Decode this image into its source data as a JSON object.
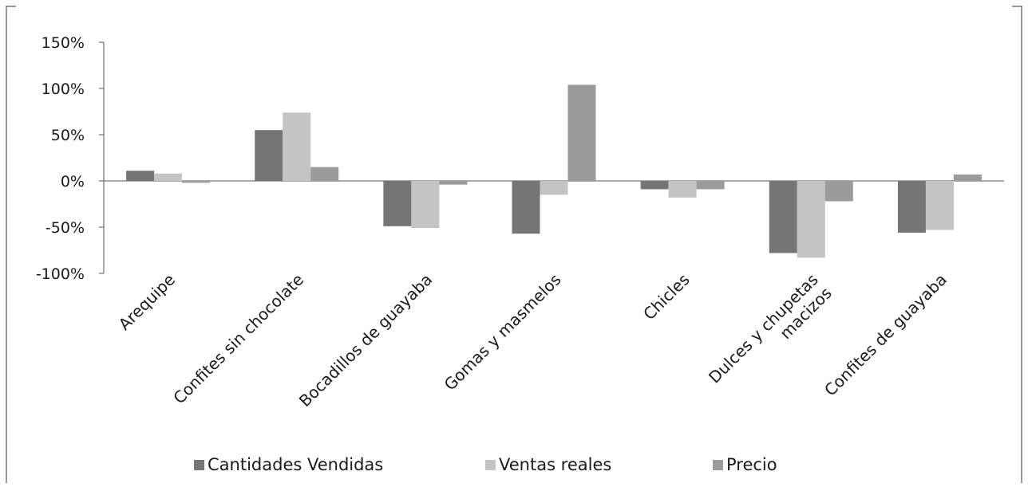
{
  "chart_data": {
    "type": "bar",
    "title": "",
    "xlabel": "",
    "ylabel": "",
    "ylim": [
      -100,
      150
    ],
    "yticks": [
      150,
      100,
      50,
      0,
      -50,
      -100
    ],
    "ytick_labels": [
      "150%",
      "100%",
      "50%",
      "0%",
      "-50%",
      "-100%"
    ],
    "grid": false,
    "legend_position": "bottom",
    "categories": [
      "Arequipe",
      "Confites sin chocolate",
      "Bocadillos de guayaba",
      "Gomas y masmelos",
      "Chicles",
      "Dulces y chupetas macizos",
      "Confites de guayaba"
    ],
    "series": [
      {
        "name": "Cantidades Vendidas",
        "color": "#757575",
        "values": [
          11,
          55,
          -49,
          -57,
          -9,
          -78,
          -56
        ]
      },
      {
        "name": "Ventas reales",
        "color": "#c4c4c4",
        "values": [
          8,
          74,
          -51,
          -15,
          -18,
          -83,
          -53
        ]
      },
      {
        "name": "Precio",
        "color": "#9b9b9b",
        "values": [
          -2,
          15,
          -4,
          104,
          -9,
          -22,
          7
        ]
      }
    ]
  }
}
